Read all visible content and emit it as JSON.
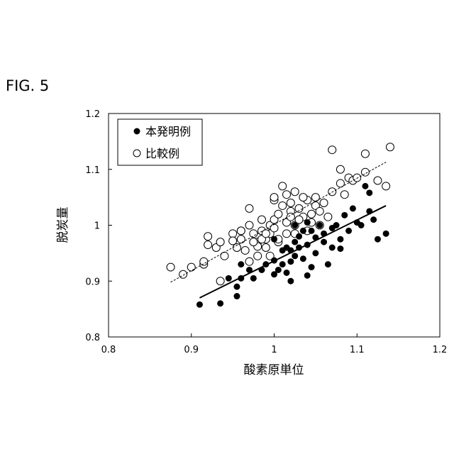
{
  "figure_label": "FIG. 5",
  "chart_data": {
    "type": "scatter",
    "title": "",
    "xlabel": "酸素原単位",
    "ylabel": "脱炭量",
    "xlim": [
      0.8,
      1.2
    ],
    "ylim": [
      0.8,
      1.2
    ],
    "x_ticks": [
      "0.8",
      "0.9",
      "1",
      "1.1",
      "1.2"
    ],
    "y_ticks": [
      "0.8",
      "0.9",
      "1",
      "1.1",
      "1.2"
    ],
    "grid": false,
    "legend_position": "top-left",
    "series": [
      {
        "name": "本発明例",
        "marker": "filled-circle",
        "color": "#000000",
        "trendline": {
          "style": "solid",
          "x": [
            0.91,
            1.135
          ],
          "y": [
            0.87,
            1.035
          ]
        },
        "points": [
          [
            0.91,
            0.858
          ],
          [
            0.935,
            0.86
          ],
          [
            0.955,
            0.873
          ],
          [
            0.955,
            0.89
          ],
          [
            0.96,
            0.905
          ],
          [
            0.96,
            0.93
          ],
          [
            0.975,
            0.905
          ],
          [
            0.985,
            0.92
          ],
          [
            0.99,
            0.93
          ],
          [
            1.0,
            0.912
          ],
          [
            1.0,
            0.937
          ],
          [
            1.005,
            0.92
          ],
          [
            1.01,
            0.93
          ],
          [
            1.01,
            0.955
          ],
          [
            1.015,
            0.96
          ],
          [
            1.015,
            0.915
          ],
          [
            1.02,
            0.935
          ],
          [
            1.02,
            0.955
          ],
          [
            1.025,
            0.945
          ],
          [
            1.025,
            0.97
          ],
          [
            1.03,
            0.96
          ],
          [
            1.03,
            0.98
          ],
          [
            1.035,
            0.99
          ],
          [
            1.04,
            0.965
          ],
          [
            1.04,
            0.91
          ],
          [
            1.045,
            0.925
          ],
          [
            1.05,
            0.95
          ],
          [
            1.05,
            0.978
          ],
          [
            1.055,
            1.0
          ],
          [
            1.06,
            0.985
          ],
          [
            1.065,
            0.93
          ],
          [
            1.07,
            0.96
          ],
          [
            1.075,
            1.0
          ],
          [
            1.08,
            0.975
          ],
          [
            1.08,
            0.958
          ],
          [
            1.085,
            1.018
          ],
          [
            1.09,
            0.99
          ],
          [
            1.1,
            1.005
          ],
          [
            1.105,
            1.0
          ],
          [
            1.11,
            1.07
          ],
          [
            1.115,
            1.025
          ],
          [
            1.115,
            1.058
          ],
          [
            1.12,
            1.01
          ],
          [
            1.125,
            0.975
          ],
          [
            1.135,
            0.985
          ],
          [
            1.0,
            0.975
          ],
          [
            1.06,
            0.97
          ],
          [
            1.045,
            0.99
          ],
          [
            1.035,
            0.94
          ],
          [
            1.025,
            1.0
          ],
          [
            1.04,
            1.005
          ],
          [
            1.07,
            0.995
          ],
          [
            1.095,
            1.03
          ],
          [
            1.02,
            0.9
          ],
          [
            0.97,
            0.92
          ],
          [
            0.945,
            0.905
          ]
        ]
      },
      {
        "name": "比較例",
        "marker": "hollow-circle",
        "color": "#000000",
        "trendline": {
          "style": "dashed",
          "x": [
            0.875,
            1.135
          ],
          "y": [
            0.898,
            1.113
          ]
        },
        "points": [
          [
            0.875,
            0.925
          ],
          [
            0.89,
            0.912
          ],
          [
            0.9,
            0.925
          ],
          [
            0.915,
            0.93
          ],
          [
            0.915,
            0.935
          ],
          [
            0.92,
            0.98
          ],
          [
            0.92,
            0.965
          ],
          [
            0.93,
            0.96
          ],
          [
            0.935,
            0.97
          ],
          [
            0.935,
            0.9
          ],
          [
            0.94,
            0.945
          ],
          [
            0.95,
            0.985
          ],
          [
            0.95,
            0.972
          ],
          [
            0.955,
            0.96
          ],
          [
            0.96,
            0.99
          ],
          [
            0.96,
            0.975
          ],
          [
            0.965,
            0.955
          ],
          [
            0.97,
            1.03
          ],
          [
            0.97,
            0.935
          ],
          [
            0.975,
            0.985
          ],
          [
            0.98,
            0.97
          ],
          [
            0.98,
            0.945
          ],
          [
            0.985,
            1.01
          ],
          [
            0.985,
            0.99
          ],
          [
            0.99,
            0.975
          ],
          [
            0.99,
            0.96
          ],
          [
            0.995,
            1.0
          ],
          [
            0.995,
            0.985
          ],
          [
            1.0,
            1.045
          ],
          [
            1.0,
            1.01
          ],
          [
            1.0,
            0.995
          ],
          [
            1.005,
            1.02
          ],
          [
            1.01,
            1.07
          ],
          [
            1.01,
            1.035
          ],
          [
            1.015,
            1.005
          ],
          [
            1.02,
            1.04
          ],
          [
            1.02,
            1.025
          ],
          [
            1.025,
            1.0
          ],
          [
            1.03,
            1.03
          ],
          [
            1.035,
            1.015
          ],
          [
            1.04,
            1.045
          ],
          [
            1.04,
            0.99
          ],
          [
            1.045,
            1.02
          ],
          [
            1.05,
            1.05
          ],
          [
            1.05,
            1.035
          ],
          [
            1.055,
            1.0
          ],
          [
            1.06,
            1.04
          ],
          [
            1.065,
            1.015
          ],
          [
            1.07,
            1.135
          ],
          [
            1.07,
            1.06
          ],
          [
            1.08,
            1.1
          ],
          [
            1.08,
            1.075
          ],
          [
            1.085,
            1.055
          ],
          [
            1.09,
            1.085
          ],
          [
            1.095,
            1.08
          ],
          [
            1.1,
            1.085
          ],
          [
            1.11,
            1.095
          ],
          [
            1.11,
            1.128
          ],
          [
            1.125,
            1.08
          ],
          [
            1.135,
            1.07
          ],
          [
            1.14,
            1.14
          ],
          [
            0.97,
            1.0
          ],
          [
            0.98,
            0.962
          ],
          [
            0.995,
            0.945
          ],
          [
            1.005,
            0.97
          ],
          [
            1.015,
            0.985
          ],
          [
            1.025,
            1.06
          ],
          [
            1.035,
            1.05
          ],
          [
            1.045,
            1.005
          ],
          [
            1.055,
            1.025
          ],
          [
            0.975,
            0.97
          ],
          [
            0.96,
            0.99
          ],
          [
            0.985,
            0.975
          ],
          [
            1.0,
            1.05
          ],
          [
            1.03,
            1.01
          ],
          [
            1.015,
            1.055
          ],
          [
            1.025,
            0.985
          ],
          [
            0.99,
            0.985
          ],
          [
            1.005,
            0.975
          ],
          [
            1.02,
            1.015
          ]
        ]
      }
    ]
  }
}
